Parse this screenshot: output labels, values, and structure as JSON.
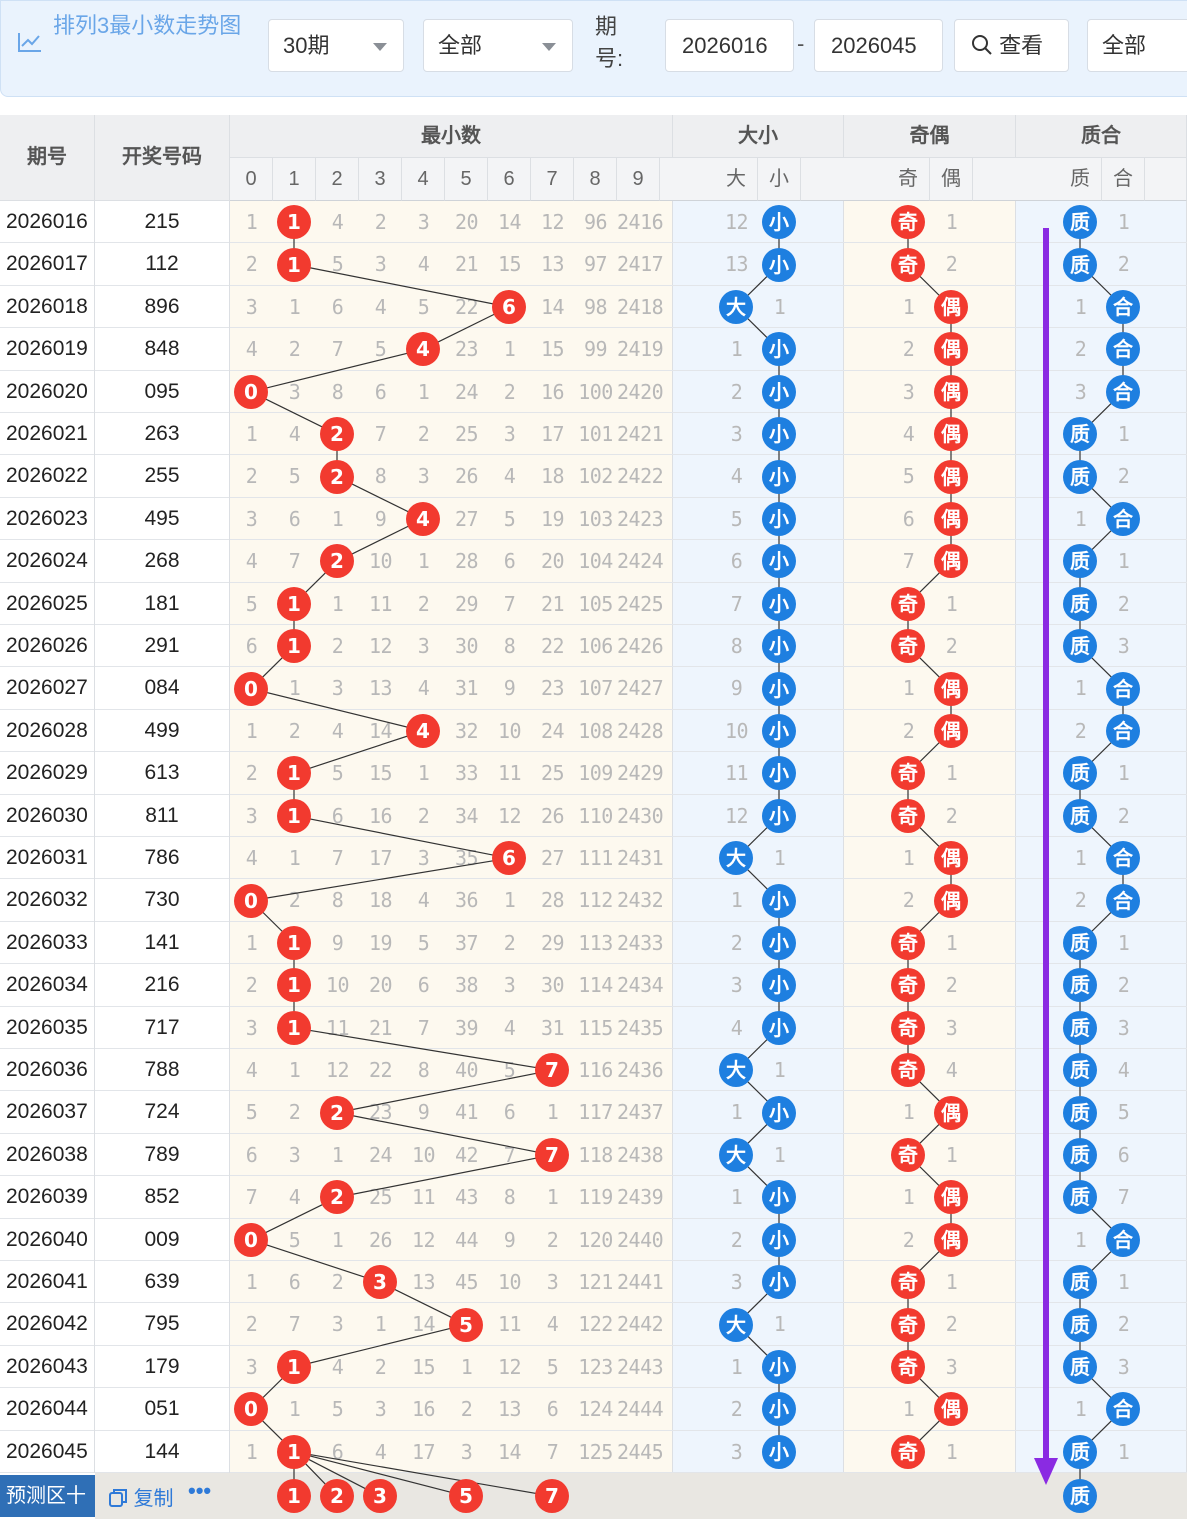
{
  "toolbar": {
    "title": "排列3最小数走势图",
    "period_select": "30期",
    "scope_select": "全部",
    "period_label": "期号:",
    "start_issue": "2026016",
    "range_sep": "-",
    "end_issue": "2026045",
    "view_button": "查看",
    "filter_select": "全部"
  },
  "header": {
    "issue": "期号",
    "draw": "开奖号码",
    "min_group": "最小数",
    "size_group": "大小",
    "parity_group": "奇偶",
    "prime_group": "质合",
    "digits": [
      "0",
      "1",
      "2",
      "3",
      "4",
      "5",
      "6",
      "7",
      "8",
      "9"
    ],
    "size_cols": [
      "大",
      "小"
    ],
    "parity_cols": [
      "奇",
      "偶"
    ],
    "prime_cols": [
      "质",
      "合"
    ]
  },
  "rows": [
    {
      "issue": "2026016",
      "draw": "215",
      "m": [
        1,
        "●",
        4,
        2,
        3,
        20,
        14,
        12,
        96,
        2416
      ],
      "sz": [
        12,
        "小"
      ],
      "pa": [
        "奇",
        1
      ],
      "pr": [
        "质",
        1
      ],
      "min": 1
    },
    {
      "issue": "2026017",
      "draw": "112",
      "m": [
        2,
        "●",
        5,
        3,
        4,
        21,
        15,
        13,
        97,
        2417
      ],
      "sz": [
        13,
        "小"
      ],
      "pa": [
        "奇",
        2
      ],
      "pr": [
        "质",
        2
      ],
      "min": 1
    },
    {
      "issue": "2026018",
      "draw": "896",
      "m": [
        3,
        1,
        6,
        4,
        5,
        22,
        "●",
        14,
        98,
        2418
      ],
      "sz": [
        "大",
        1
      ],
      "pa": [
        1,
        "偶"
      ],
      "pr": [
        1,
        "合"
      ],
      "min": 6
    },
    {
      "issue": "2026019",
      "draw": "848",
      "m": [
        4,
        2,
        7,
        5,
        "●",
        23,
        1,
        15,
        99,
        2419
      ],
      "sz": [
        1,
        "小"
      ],
      "pa": [
        2,
        "偶"
      ],
      "pr": [
        2,
        "合"
      ],
      "min": 4
    },
    {
      "issue": "2026020",
      "draw": "095",
      "m": [
        "●",
        3,
        8,
        6,
        1,
        24,
        2,
        16,
        100,
        2420
      ],
      "sz": [
        2,
        "小"
      ],
      "pa": [
        3,
        "偶"
      ],
      "pr": [
        3,
        "合"
      ],
      "min": 0
    },
    {
      "issue": "2026021",
      "draw": "263",
      "m": [
        1,
        4,
        "●",
        7,
        2,
        25,
        3,
        17,
        101,
        2421
      ],
      "sz": [
        3,
        "小"
      ],
      "pa": [
        4,
        "偶"
      ],
      "pr": [
        "质",
        1
      ],
      "min": 2
    },
    {
      "issue": "2026022",
      "draw": "255",
      "m": [
        2,
        5,
        "●",
        8,
        3,
        26,
        4,
        18,
        102,
        2422
      ],
      "sz": [
        4,
        "小"
      ],
      "pa": [
        5,
        "偶"
      ],
      "pr": [
        "质",
        2
      ],
      "min": 2
    },
    {
      "issue": "2026023",
      "draw": "495",
      "m": [
        3,
        6,
        1,
        9,
        "●",
        27,
        5,
        19,
        103,
        2423
      ],
      "sz": [
        5,
        "小"
      ],
      "pa": [
        6,
        "偶"
      ],
      "pr": [
        1,
        "合"
      ],
      "min": 4
    },
    {
      "issue": "2026024",
      "draw": "268",
      "m": [
        4,
        7,
        "●",
        10,
        1,
        28,
        6,
        20,
        104,
        2424
      ],
      "sz": [
        6,
        "小"
      ],
      "pa": [
        7,
        "偶"
      ],
      "pr": [
        "质",
        1
      ],
      "min": 2
    },
    {
      "issue": "2026025",
      "draw": "181",
      "m": [
        5,
        "●",
        1,
        11,
        2,
        29,
        7,
        21,
        105,
        2425
      ],
      "sz": [
        7,
        "小"
      ],
      "pa": [
        "奇",
        1
      ],
      "pr": [
        "质",
        2
      ],
      "min": 1
    },
    {
      "issue": "2026026",
      "draw": "291",
      "m": [
        6,
        "●",
        2,
        12,
        3,
        30,
        8,
        22,
        106,
        2426
      ],
      "sz": [
        8,
        "小"
      ],
      "pa": [
        "奇",
        2
      ],
      "pr": [
        "质",
        3
      ],
      "min": 1
    },
    {
      "issue": "2026027",
      "draw": "084",
      "m": [
        "●",
        1,
        3,
        13,
        4,
        31,
        9,
        23,
        107,
        2427
      ],
      "sz": [
        9,
        "小"
      ],
      "pa": [
        1,
        "偶"
      ],
      "pr": [
        1,
        "合"
      ],
      "min": 0
    },
    {
      "issue": "2026028",
      "draw": "499",
      "m": [
        1,
        2,
        4,
        14,
        "●",
        32,
        10,
        24,
        108,
        2428
      ],
      "sz": [
        10,
        "小"
      ],
      "pa": [
        2,
        "偶"
      ],
      "pr": [
        2,
        "合"
      ],
      "min": 4
    },
    {
      "issue": "2026029",
      "draw": "613",
      "m": [
        2,
        "●",
        5,
        15,
        1,
        33,
        11,
        25,
        109,
        2429
      ],
      "sz": [
        11,
        "小"
      ],
      "pa": [
        "奇",
        1
      ],
      "pr": [
        "质",
        1
      ],
      "min": 1
    },
    {
      "issue": "2026030",
      "draw": "811",
      "m": [
        3,
        "●",
        6,
        16,
        2,
        34,
        12,
        26,
        110,
        2430
      ],
      "sz": [
        12,
        "小"
      ],
      "pa": [
        "奇",
        2
      ],
      "pr": [
        "质",
        2
      ],
      "min": 1
    },
    {
      "issue": "2026031",
      "draw": "786",
      "m": [
        4,
        1,
        7,
        17,
        3,
        35,
        "●",
        27,
        111,
        2431
      ],
      "sz": [
        "大",
        1
      ],
      "pa": [
        1,
        "偶"
      ],
      "pr": [
        1,
        "合"
      ],
      "min": 6
    },
    {
      "issue": "2026032",
      "draw": "730",
      "m": [
        "●",
        2,
        8,
        18,
        4,
        36,
        1,
        28,
        112,
        2432
      ],
      "sz": [
        1,
        "小"
      ],
      "pa": [
        2,
        "偶"
      ],
      "pr": [
        2,
        "合"
      ],
      "min": 0
    },
    {
      "issue": "2026033",
      "draw": "141",
      "m": [
        1,
        "●",
        9,
        19,
        5,
        37,
        2,
        29,
        113,
        2433
      ],
      "sz": [
        2,
        "小"
      ],
      "pa": [
        "奇",
        1
      ],
      "pr": [
        "质",
        1
      ],
      "min": 1
    },
    {
      "issue": "2026034",
      "draw": "216",
      "m": [
        2,
        "●",
        10,
        20,
        6,
        38,
        3,
        30,
        114,
        2434
      ],
      "sz": [
        3,
        "小"
      ],
      "pa": [
        "奇",
        2
      ],
      "pr": [
        "质",
        2
      ],
      "min": 1
    },
    {
      "issue": "2026035",
      "draw": "717",
      "m": [
        3,
        "●",
        11,
        21,
        7,
        39,
        4,
        31,
        115,
        2435
      ],
      "sz": [
        4,
        "小"
      ],
      "pa": [
        "奇",
        3
      ],
      "pr": [
        "质",
        3
      ],
      "min": 1
    },
    {
      "issue": "2026036",
      "draw": "788",
      "m": [
        4,
        1,
        12,
        22,
        8,
        40,
        5,
        "●",
        116,
        2436
      ],
      "sz": [
        "大",
        1
      ],
      "pa": [
        "奇",
        4
      ],
      "pr": [
        "质",
        4
      ],
      "min": 7
    },
    {
      "issue": "2026037",
      "draw": "724",
      "m": [
        5,
        2,
        "●",
        23,
        9,
        41,
        6,
        1,
        117,
        2437
      ],
      "sz": [
        1,
        "小"
      ],
      "pa": [
        1,
        "偶"
      ],
      "pr": [
        "质",
        5
      ],
      "min": 2
    },
    {
      "issue": "2026038",
      "draw": "789",
      "m": [
        6,
        3,
        1,
        24,
        10,
        42,
        7,
        "●",
        118,
        2438
      ],
      "sz": [
        "大",
        1
      ],
      "pa": [
        "奇",
        1
      ],
      "pr": [
        "质",
        6
      ],
      "min": 7
    },
    {
      "issue": "2026039",
      "draw": "852",
      "m": [
        7,
        4,
        "●",
        25,
        11,
        43,
        8,
        1,
        119,
        2439
      ],
      "sz": [
        1,
        "小"
      ],
      "pa": [
        1,
        "偶"
      ],
      "pr": [
        "质",
        7
      ],
      "min": 2
    },
    {
      "issue": "2026040",
      "draw": "009",
      "m": [
        "●",
        5,
        1,
        26,
        12,
        44,
        9,
        2,
        120,
        2440
      ],
      "sz": [
        2,
        "小"
      ],
      "pa": [
        2,
        "偶"
      ],
      "pr": [
        1,
        "合"
      ],
      "min": 0
    },
    {
      "issue": "2026041",
      "draw": "639",
      "m": [
        1,
        6,
        2,
        "●",
        13,
        45,
        10,
        3,
        121,
        2441
      ],
      "sz": [
        3,
        "小"
      ],
      "pa": [
        "奇",
        1
      ],
      "pr": [
        "质",
        1
      ],
      "min": 3
    },
    {
      "issue": "2026042",
      "draw": "795",
      "m": [
        2,
        7,
        3,
        1,
        14,
        "●",
        11,
        4,
        122,
        2442
      ],
      "sz": [
        "大",
        1
      ],
      "pa": [
        "奇",
        2
      ],
      "pr": [
        "质",
        2
      ],
      "min": 5
    },
    {
      "issue": "2026043",
      "draw": "179",
      "m": [
        3,
        "●",
        4,
        2,
        15,
        1,
        12,
        5,
        123,
        2443
      ],
      "sz": [
        1,
        "小"
      ],
      "pa": [
        "奇",
        3
      ],
      "pr": [
        "质",
        3
      ],
      "min": 1
    },
    {
      "issue": "2026044",
      "draw": "051",
      "m": [
        "●",
        1,
        5,
        3,
        16,
        2,
        13,
        6,
        124,
        2444
      ],
      "sz": [
        2,
        "小"
      ],
      "pa": [
        1,
        "偶"
      ],
      "pr": [
        1,
        "合"
      ],
      "min": 0
    },
    {
      "issue": "2026045",
      "draw": "144",
      "m": [
        1,
        "●",
        6,
        4,
        17,
        3,
        14,
        7,
        125,
        2445
      ],
      "sz": [
        3,
        "小"
      ],
      "pa": [
        "奇",
        1
      ],
      "pr": [
        "质",
        1
      ],
      "min": 1
    }
  ],
  "footer": {
    "predict_label": "预测区十",
    "copy_label": "复制",
    "more_label": "•••",
    "predict_balls": [
      1,
      2,
      3,
      5,
      7
    ],
    "predict_prime": "质"
  },
  "colors": {
    "red": "#f23a2f",
    "blue": "#1e7fe0",
    "purple": "#8a2be2",
    "toolbar_bg": "#eaf3fd"
  }
}
